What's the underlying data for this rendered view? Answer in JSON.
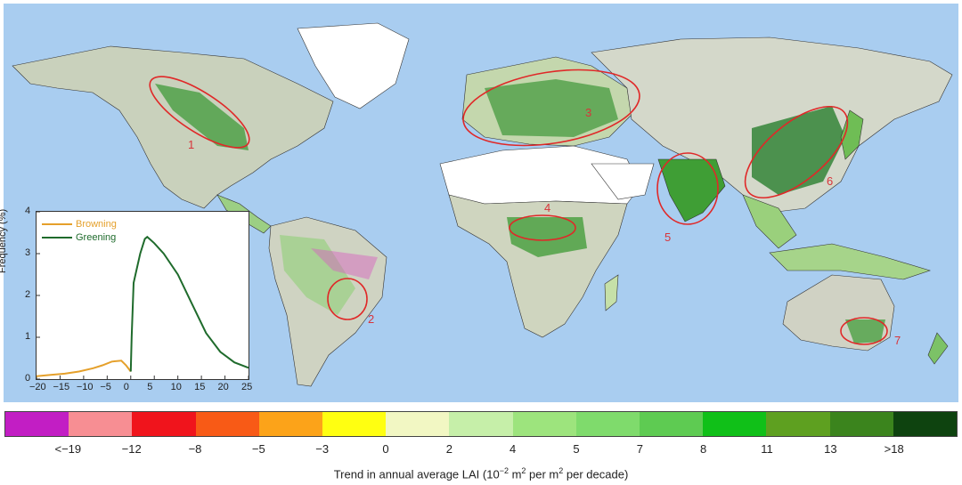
{
  "map": {
    "ocean_color": "#a9cdf0",
    "hotspots": [
      {
        "label": "1"
      },
      {
        "label": "2"
      },
      {
        "label": "3"
      },
      {
        "label": "4"
      },
      {
        "label": "5"
      },
      {
        "label": "6"
      },
      {
        "label": "7"
      }
    ]
  },
  "inset": {
    "legend": [
      {
        "name": "Browning",
        "color": "#e5a02b"
      },
      {
        "name": "Greening",
        "color": "#1f6b2c"
      }
    ],
    "y_label": "Frequency (%)"
  },
  "chart_data": {
    "type": "line",
    "xlim": [
      -20,
      25
    ],
    "ylim": [
      0,
      4
    ],
    "x_ticks": [
      "−20",
      "−15",
      "−10",
      "−5",
      "0",
      "5",
      "10",
      "15",
      "20",
      "25"
    ],
    "y_ticks": [
      "0",
      "1",
      "2",
      "3",
      "4"
    ],
    "ylabel": "Frequency (%)",
    "legend_position": "top-left",
    "series": [
      {
        "name": "Browning",
        "color": "#e5a02b",
        "x": [
          -20,
          -17,
          -14,
          -11,
          -8,
          -6,
          -4,
          -2,
          -1,
          0
        ],
        "y": [
          0.07,
          0.1,
          0.13,
          0.18,
          0.26,
          0.33,
          0.42,
          0.44,
          0.33,
          0.18
        ]
      },
      {
        "name": "Greening",
        "color": "#1f6b2c",
        "x": [
          0,
          0.2,
          0.6,
          1,
          2,
          3,
          3.5,
          4,
          5,
          7,
          10,
          13,
          16,
          19,
          22,
          25
        ],
        "y": [
          0.18,
          1.0,
          2.3,
          2.5,
          3.0,
          3.35,
          3.4,
          3.35,
          3.25,
          3.0,
          2.5,
          1.8,
          1.1,
          0.65,
          0.4,
          0.27
        ]
      }
    ]
  },
  "colorbar": {
    "title_prefix": "Trend in annual average LAI (10",
    "title_exp1": "−2",
    "title_mid": " m",
    "title_exp2": "2",
    "title_mid2": " per m",
    "title_exp3": "2",
    "title_suffix": " per decade)",
    "colors": [
      "#c21ec4",
      "#f78e93",
      "#f0141c",
      "#f85a16",
      "#fca319",
      "#ffff11",
      "#f2f7c3",
      "#c6efa9",
      "#9de47d",
      "#7fdb6c",
      "#5ecb52",
      "#10c018",
      "#5ea020",
      "#3b841d",
      "#0e430f"
    ],
    "labels": [
      "<−19",
      "−12",
      "−8",
      "−5",
      "−3",
      "0",
      "2",
      "4",
      "5",
      "7",
      "8",
      "11",
      "13",
      ">18"
    ]
  }
}
